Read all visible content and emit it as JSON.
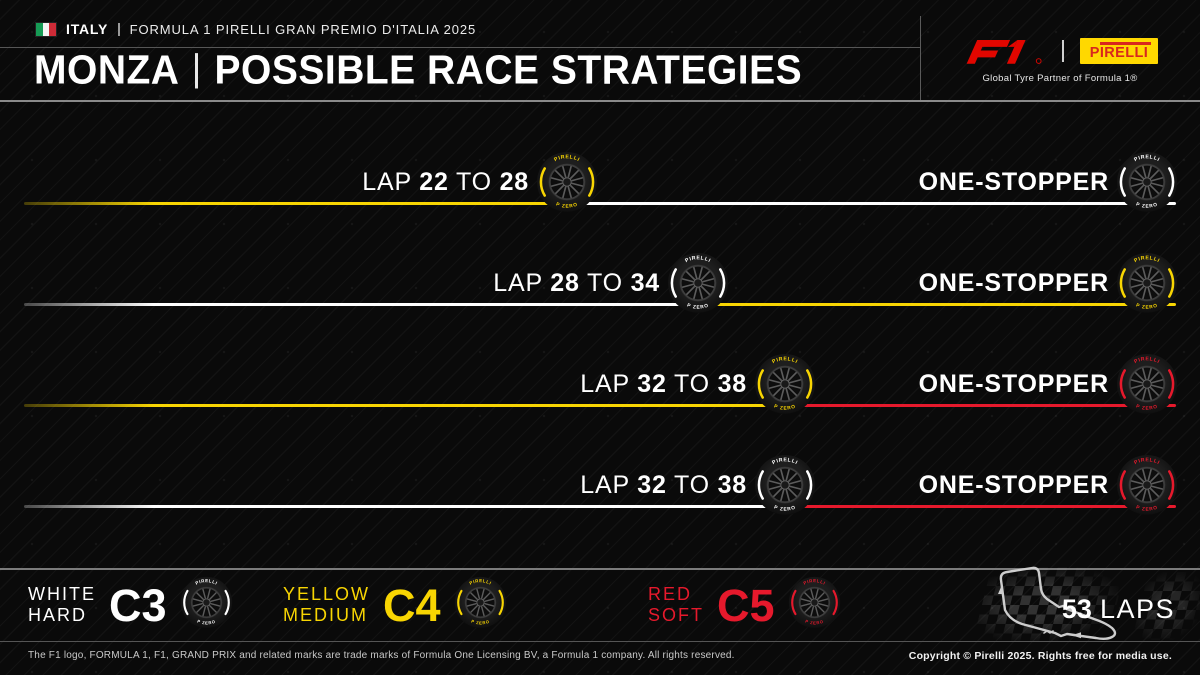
{
  "header": {
    "country": "ITALY",
    "event": "FORMULA 1 PIRELLI GRAN PREMIO D'ITALIA 2025",
    "title_left": "MONZA",
    "title_right": "POSSIBLE RACE STRATEGIES",
    "f1_logo": "F1",
    "pirelli_logo": "PIRELLI",
    "partner_caption": "Global Tyre Partner of Formula 1®"
  },
  "labels": {
    "lap": "LAP",
    "to": "TO"
  },
  "strategies": [
    {
      "lap_from": 22,
      "lap_to": 28,
      "first_compound": "medium",
      "second_compound": "hard",
      "stop_label": "ONE-STOPPER"
    },
    {
      "lap_from": 28,
      "lap_to": 34,
      "first_compound": "hard",
      "second_compound": "medium",
      "stop_label": "ONE-STOPPER"
    },
    {
      "lap_from": 32,
      "lap_to": 38,
      "first_compound": "medium",
      "second_compound": "soft",
      "stop_label": "ONE-STOPPER"
    },
    {
      "lap_from": 32,
      "lap_to": 38,
      "first_compound": "hard",
      "second_compound": "soft",
      "stop_label": "ONE-STOPPER"
    }
  ],
  "compound_colors": {
    "hard": "#ffffff",
    "medium": "#f8d502",
    "soft": "#e6192c"
  },
  "tyre_text": {
    "brand": "PIRELLI",
    "model": "P ZERO"
  },
  "legend": {
    "compounds": [
      {
        "color_name": "WHITE",
        "type": "HARD",
        "code": "C3",
        "compound": "hard"
      },
      {
        "color_name": "YELLOW",
        "type": "MEDIUM",
        "code": "C4",
        "compound": "medium"
      },
      {
        "color_name": "RED",
        "type": "SOFT",
        "code": "C5",
        "compound": "soft"
      }
    ],
    "laps_value": "53",
    "laps_label": "LAPS"
  },
  "footer": {
    "left": "The F1 logo, FORMULA 1, F1, GRAND PRIX and related marks are trade marks of Formula One Licensing BV, a Formula 1 company. All rights reserved.",
    "right": "Copyright © Pirelli 2025. Rights free for media use."
  },
  "brand_colors": {
    "f1_red": "#e10600",
    "pirelli_yellow": "#ffd800",
    "pirelli_red": "#d8271e"
  }
}
